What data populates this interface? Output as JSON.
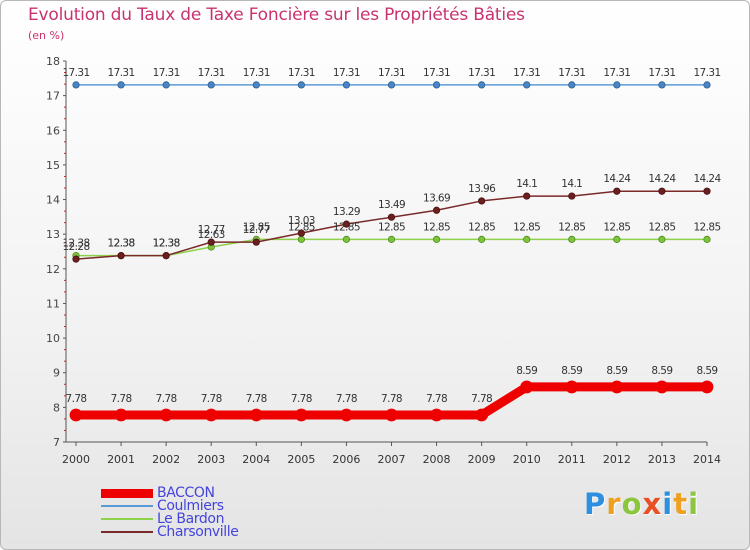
{
  "header": {
    "title": "Evolution du Taux de Taxe Foncière sur les Propriétés Bâties",
    "unit": "(en %)"
  },
  "chart_data": {
    "type": "line",
    "title": "Evolution du Taux de Taxe Foncière sur les Propriétés Bâties",
    "ylabel": "(en %)",
    "xlabel": "",
    "ylim": [
      7,
      18
    ],
    "yticks": [
      "7",
      "8",
      "9",
      "10",
      "11",
      "12",
      "13",
      "14",
      "15",
      "16",
      "17",
      "18"
    ],
    "x": [
      "2000",
      "2001",
      "2002",
      "2003",
      "2004",
      "2005",
      "2006",
      "2007",
      "2008",
      "2009",
      "2010",
      "2011",
      "2012",
      "2013",
      "2014"
    ],
    "grid": false,
    "series": [
      {
        "name": "BACCON",
        "color": "#ee0000",
        "values": [
          7.78,
          7.78,
          7.78,
          7.78,
          7.78,
          7.78,
          7.78,
          7.78,
          7.78,
          7.78,
          8.59,
          8.59,
          8.59,
          8.59,
          8.59
        ],
        "labels": [
          "7.78",
          "7.78",
          "7.78",
          "7.78",
          "7.78",
          "7.78",
          "7.78",
          "7.78",
          "7.78",
          "7.78",
          "8.59",
          "8.59",
          "8.59",
          "8.59",
          "8.59"
        ]
      },
      {
        "name": "Coulmiers",
        "color": "#5b9bd5",
        "values": [
          17.31,
          17.31,
          17.31,
          17.31,
          17.31,
          17.31,
          17.31,
          17.31,
          17.31,
          17.31,
          17.31,
          17.31,
          17.31,
          17.31,
          17.31
        ],
        "labels": [
          "17.31",
          "17.31",
          "17.31",
          "17.31",
          "17.31",
          "17.31",
          "17.31",
          "17.31",
          "17.31",
          "17.31",
          "17.31",
          "17.31",
          "17.31",
          "17.31",
          "17.31"
        ]
      },
      {
        "name": "Le Bardon",
        "color": "#8ed14a",
        "values": [
          12.38,
          12.38,
          12.38,
          12.63,
          12.85,
          12.85,
          12.85,
          12.85,
          12.85,
          12.85,
          12.85,
          12.85,
          12.85,
          12.85,
          12.85
        ],
        "labels": [
          "12.38",
          "12.38",
          "12.38",
          "12.63",
          "12.85",
          "12.85",
          "12.85",
          "12.85",
          "12.85",
          "12.85",
          "12.85",
          "12.85",
          "12.85",
          "12.85",
          "12.85"
        ]
      },
      {
        "name": "Charsonville",
        "color": "#7a2a2a",
        "values": [
          12.28,
          12.38,
          12.38,
          12.77,
          12.77,
          13.03,
          13.29,
          13.49,
          13.69,
          13.96,
          14.1,
          14.1,
          14.24,
          14.24,
          14.24
        ],
        "labels": [
          "12.28",
          "12.38",
          "12.38",
          "12.77",
          "12.77",
          "13.03",
          "13.29",
          "13.49",
          "13.69",
          "13.96",
          "14.1",
          "14.1",
          "14.24",
          "14.24",
          "14.24"
        ]
      }
    ],
    "legend_position": "bottom-left"
  },
  "logo": {
    "letters": [
      "P",
      "r",
      "o",
      "x",
      "i",
      "t",
      "i"
    ],
    "colors": [
      "#2c8fe0",
      "#f0a020",
      "#8cc63f",
      "#e84f23",
      "#2c8fe0",
      "#f0a020",
      "#8cc63f"
    ]
  }
}
